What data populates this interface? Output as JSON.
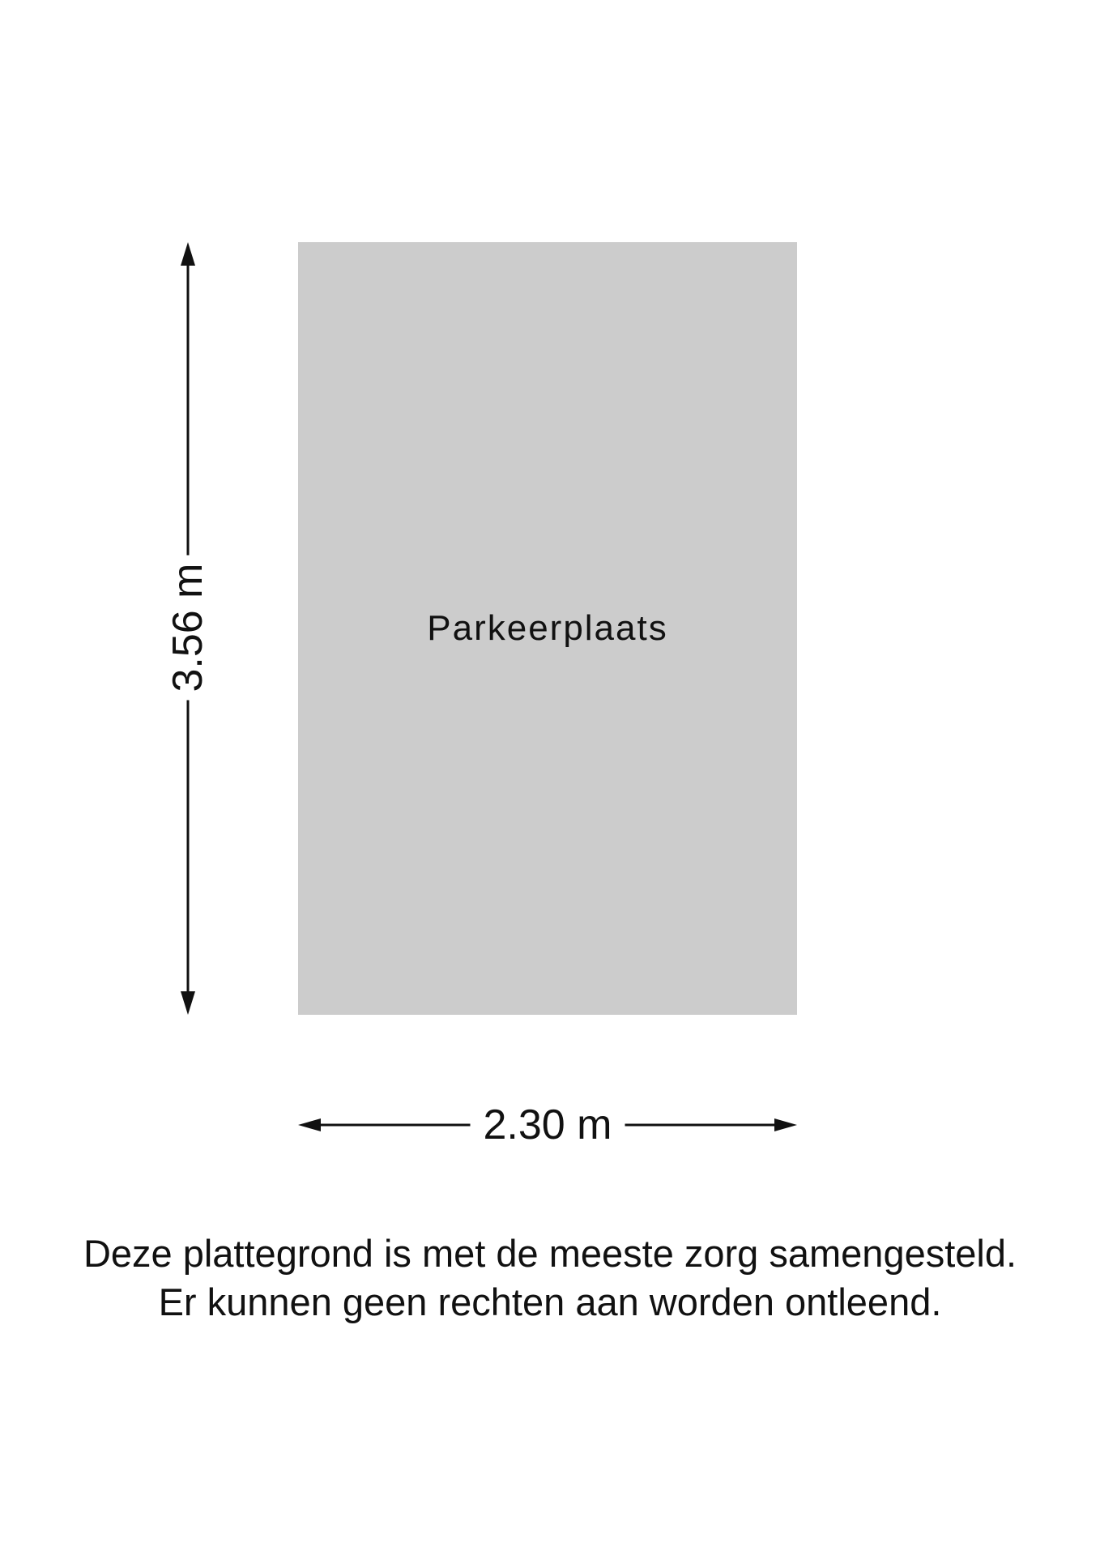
{
  "room": {
    "label": "Parkeerplaats",
    "fill_color": "#cccccc"
  },
  "dimensions": {
    "height": "3.56 m",
    "width": "2.30 m"
  },
  "disclaimer": {
    "line1": "Deze plattegrond is met de meeste zorg samengesteld.",
    "line2": "Er kunnen geen rechten aan worden ontleend."
  }
}
